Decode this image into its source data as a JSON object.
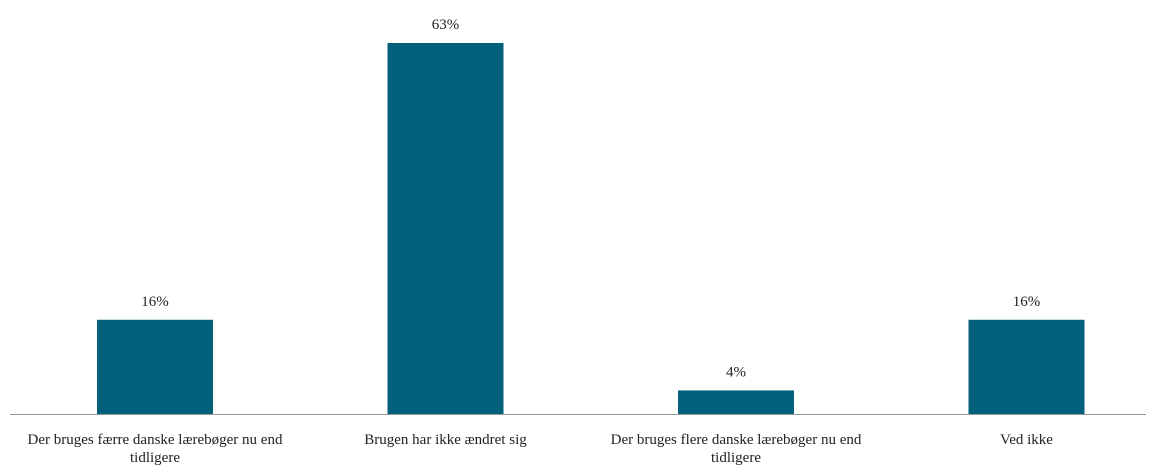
{
  "chart_data": {
    "type": "bar",
    "categories": [
      "Der bruges færre danske lærebøger nu end tidligere",
      "Brugen har ikke ændret sig",
      "Der bruges flere danske lærebøger nu end tidligere",
      "Ved ikke"
    ],
    "values": [
      16,
      63,
      4,
      16
    ],
    "value_labels": [
      "16%",
      "63%",
      "4%",
      "16%"
    ],
    "color": "#02607b"
  }
}
